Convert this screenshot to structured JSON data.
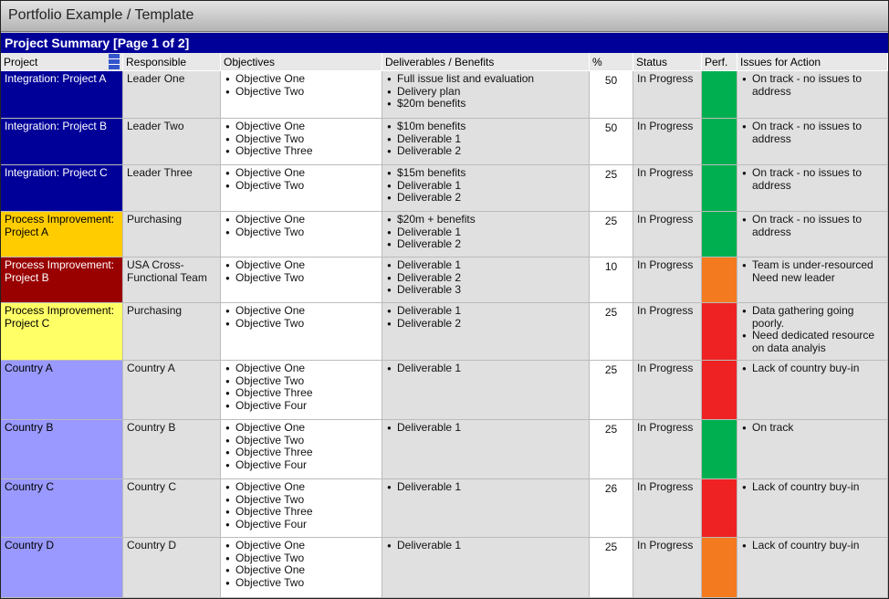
{
  "header": {
    "title": "Portfolio Example / Template",
    "section": "Project Summary [Page 1 of 2]"
  },
  "table": {
    "columns": [
      "Project",
      "Responsible",
      "Objectives",
      "Deliverables / Benefits",
      "%",
      "Status",
      "Perf.",
      "Issues for Action"
    ],
    "rows": [
      {
        "project": "Integration: Project A",
        "project_color": "#000099",
        "responsible": "Leader One",
        "objectives": [
          "Objective One",
          "Objective Two"
        ],
        "deliverables": [
          "Full issue list and evaluation",
          "Delivery plan",
          "$20m benefits"
        ],
        "percent": 50,
        "status": "In Progress",
        "perf_color": "#00b050",
        "issues": [
          "On track - no issues to address"
        ]
      },
      {
        "project": "Integration: Project B",
        "project_color": "#000099",
        "responsible": "Leader Two",
        "objectives": [
          "Objective One",
          "Objective Two",
          "Objective Three"
        ],
        "deliverables": [
          "$10m benefits",
          "Deliverable 1",
          "Deliverable 2"
        ],
        "percent": 50,
        "status": "In Progress",
        "perf_color": "#00b050",
        "issues": [
          "On track - no issues to address"
        ]
      },
      {
        "project": "Integration: Project C",
        "project_color": "#000099",
        "responsible": "Leader Three",
        "objectives": [
          "Objective One",
          "Objective Two"
        ],
        "deliverables": [
          "$15m benefits",
          "Deliverable 1",
          "Deliverable 2"
        ],
        "percent": 25,
        "status": "In Progress",
        "perf_color": "#00b050",
        "issues": [
          "On track - no issues to address"
        ]
      },
      {
        "project": "Process Improvement: Project A",
        "project_color": "#ffcc00",
        "responsible": "Purchasing",
        "objectives": [
          "Objective One",
          "Objective Two"
        ],
        "deliverables": [
          "$20m + benefits",
          "Deliverable 1",
          "Deliverable 2"
        ],
        "percent": 25,
        "status": "In Progress",
        "perf_color": "#00b050",
        "issues": [
          "On track - no issues to address"
        ]
      },
      {
        "project": "Process Improvement: Project B",
        "project_color": "#990000",
        "responsible": "USA Cross-Functional Team",
        "objectives": [
          "Objective One",
          "Objective Two"
        ],
        "deliverables": [
          "Deliverable 1",
          "Deliverable 2",
          "Deliverable 3"
        ],
        "percent": 10,
        "status": "In Progress",
        "perf_color": "#f47a20",
        "issues": [
          "Team is under-resourced Need new leader"
        ]
      },
      {
        "project": "Process Improvement: Project C",
        "project_color": "#ffff66",
        "responsible": "Purchasing",
        "objectives": [
          "Objective One",
          "Objective Two"
        ],
        "deliverables": [
          "Deliverable 1",
          "Deliverable 2"
        ],
        "percent": 25,
        "status": "In Progress",
        "perf_color": "#ee2222",
        "issues": [
          "Data gathering going poorly.",
          "Need dedicated resource on data analyis"
        ]
      },
      {
        "project": "Country A",
        "project_color": "#9999ff",
        "responsible": "Country A",
        "objectives": [
          "Objective One",
          "Objective Two",
          "Objective Three",
          "Objective Four"
        ],
        "deliverables": [
          "Deliverable 1"
        ],
        "percent": 25,
        "status": "In Progress",
        "perf_color": "#ee2222",
        "issues": [
          "Lack of country buy-in"
        ]
      },
      {
        "project": "Country B",
        "project_color": "#9999ff",
        "responsible": "Country B",
        "objectives": [
          "Objective One",
          "Objective Two",
          "Objective Three",
          "Objective Four"
        ],
        "deliverables": [
          "Deliverable 1"
        ],
        "percent": 25,
        "status": "In Progress",
        "perf_color": "#00b050",
        "issues": [
          "On track"
        ]
      },
      {
        "project": "Country C",
        "project_color": "#9999ff",
        "responsible": "Country C",
        "objectives": [
          "Objective One",
          "Objective Two",
          "Objective Three",
          "Objective Four"
        ],
        "deliverables": [
          "Deliverable 1"
        ],
        "percent": 26,
        "status": "In Progress",
        "perf_color": "#ee2222",
        "issues": [
          "Lack of country buy-in"
        ]
      },
      {
        "project": "Country D",
        "project_color": "#9999ff",
        "responsible": "Country D",
        "objectives": [
          "Objective One",
          "Objective Two",
          "Objective One",
          "Objective Two"
        ],
        "deliverables": [
          "Deliverable 1"
        ],
        "percent": 25,
        "status": "In Progress",
        "perf_color": "#f47a20",
        "issues": [
          "Lack of country buy-in"
        ]
      }
    ]
  }
}
